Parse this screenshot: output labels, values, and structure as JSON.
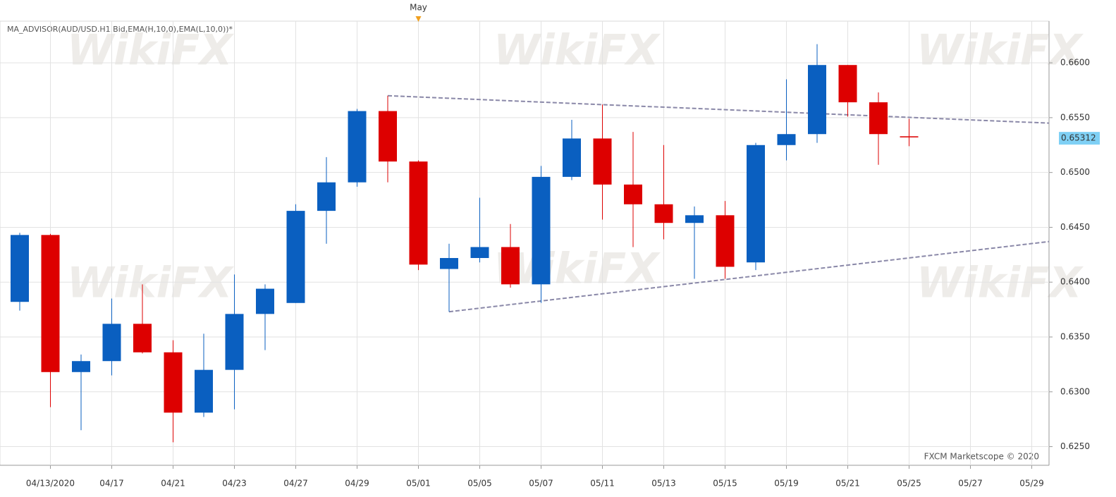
{
  "chart_data": {
    "type": "candlestick",
    "title": "MA_ADVISOR(AUD/USD.H1.Bid,EMA(H,10,0),EMA(L,10,0))*",
    "footer": "FXCM Marketscope © 2020",
    "watermark": "WikiFX",
    "marker": {
      "label": "May",
      "x": 13
    },
    "categories": [
      null,
      "04/13/2020",
      null,
      "04/17",
      null,
      "04/21",
      null,
      "04/23",
      null,
      "04/27",
      null,
      "04/29",
      null,
      "05/01",
      null,
      "05/05",
      null,
      "05/07",
      null,
      "05/11",
      null,
      "05/13",
      null,
      "05/15",
      null,
      "05/19",
      null,
      "05/21",
      null,
      "05/25",
      null,
      "05/27",
      null,
      "05/29"
    ],
    "open": [
      0.6382,
      0.6443,
      0.6318,
      0.6328,
      0.6362,
      0.6336,
      0.6281,
      0.632,
      0.6371,
      0.6381,
      0.6465,
      0.6491,
      0.6556,
      0.651,
      0.6412,
      0.6422,
      0.6432,
      0.6398,
      0.6496,
      0.6531,
      0.6489,
      0.6471,
      0.6454,
      0.6461,
      0.6418,
      0.6525,
      0.6535,
      0.6598,
      0.6564,
      0.6533,
      null,
      null,
      null,
      null
    ],
    "high": [
      0.6445,
      0.6444,
      0.6334,
      0.6385,
      0.6398,
      0.6347,
      0.6353,
      0.6407,
      0.6398,
      0.6471,
      0.6514,
      0.6558,
      0.657,
      0.6511,
      0.6435,
      0.6477,
      0.6453,
      0.6506,
      0.6548,
      0.6562,
      0.6537,
      0.6525,
      0.6469,
      0.6474,
      0.6527,
      0.6585,
      0.6617,
      0.6598,
      0.6573,
      0.6549,
      null,
      null,
      null,
      null
    ],
    "low": [
      0.6374,
      0.6286,
      0.6265,
      0.6315,
      0.6335,
      0.6254,
      0.6277,
      0.6284,
      0.6338,
      0.6381,
      0.6435,
      0.6487,
      0.6491,
      0.6411,
      0.6373,
      0.6418,
      0.6395,
      0.6381,
      0.6493,
      0.6457,
      0.6432,
      0.6439,
      0.6403,
      0.6403,
      0.6411,
      0.6511,
      0.6527,
      0.6551,
      0.6507,
      0.6524,
      null,
      null,
      null,
      null
    ],
    "close": [
      0.6443,
      0.6318,
      0.6328,
      0.6362,
      0.6336,
      0.6281,
      0.632,
      0.6371,
      0.6394,
      0.6465,
      0.6491,
      0.6556,
      0.651,
      0.6416,
      0.6422,
      0.6432,
      0.6398,
      0.6496,
      0.6531,
      0.6489,
      0.6471,
      0.6454,
      0.6461,
      0.6414,
      0.6525,
      0.6535,
      0.6598,
      0.6564,
      0.6535,
      0.6532,
      null,
      null,
      null,
      null
    ],
    "up_color": "#0a5fc0",
    "down_color": "#dd0000",
    "last_price": 0.65312,
    "trendlines": [
      {
        "x": [
          12,
          33.56
        ],
        "y": [
          0.657,
          0.6545
        ],
        "color": "#8a88a8"
      },
      {
        "x": [
          14,
          33.56
        ],
        "y": [
          0.6373,
          0.6437
        ],
        "color": "#8a88a8"
      }
    ],
    "ylim": [
      0.6233,
      0.6638
    ],
    "yticks": [
      {
        "value": 0.625,
        "label": "0.6250"
      },
      {
        "value": 0.63,
        "label": "0.6300"
      },
      {
        "value": 0.635,
        "label": "0.6350"
      },
      {
        "value": 0.64,
        "label": "0.6400"
      },
      {
        "value": 0.645,
        "label": "0.6450"
      },
      {
        "value": 0.65,
        "label": "0.6500"
      },
      {
        "value": 0.655,
        "label": "0.6550"
      },
      {
        "value": 0.66,
        "label": "0.6600"
      }
    ],
    "grid": true
  }
}
